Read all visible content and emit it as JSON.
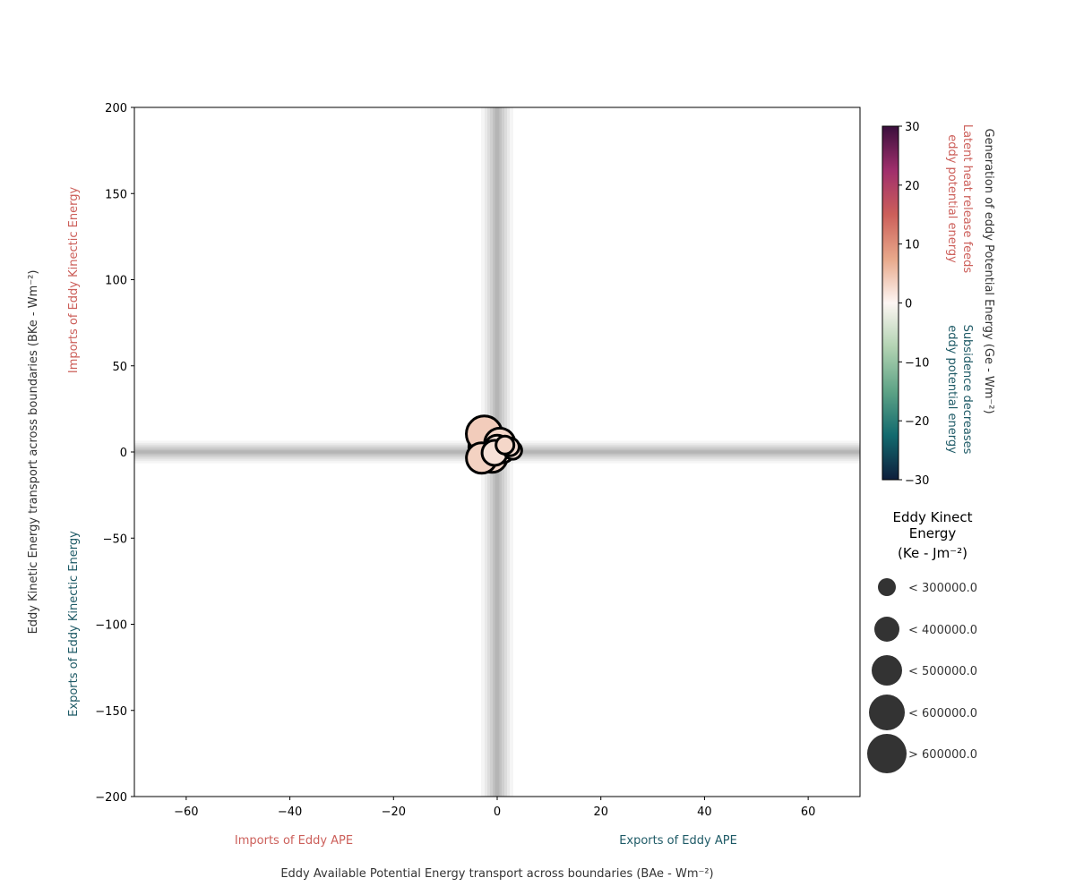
{
  "chart_data": {
    "type": "scatter",
    "xlabel": "Eddy Available Potential Energy transport across boundaries (BAe - Wm⁻²)",
    "ylabel": "Eddy Kinetic Energy transport across boundaries (BKe - Wm⁻²)",
    "xlim": [
      -70,
      70
    ],
    "ylim": [
      -200,
      200
    ],
    "xticks": [
      -60,
      -40,
      -20,
      0,
      20,
      40,
      60
    ],
    "yticks": [
      -200,
      -150,
      -100,
      -50,
      0,
      50,
      100,
      150,
      200
    ],
    "xtick_labels": [
      "−60",
      "−40",
      "−20",
      "0",
      "20",
      "40",
      "60"
    ],
    "ytick_labels": [
      "−200",
      "−150",
      "−100",
      "−50",
      "0",
      "50",
      "100",
      "150",
      "200"
    ],
    "grid": false,
    "quadrant_labels": {
      "x_negative": "Imports of Eddy APE",
      "x_positive": "Exports of Eddy APE",
      "y_positive": "Imports of Eddy Kinectic Energy",
      "y_negative": "Exports of Eddy Kinectic Energy"
    },
    "colors": {
      "imports": "#cc5f5a",
      "exports": "#1e5a66",
      "reference_band": "#808080",
      "marker_edge": "#000000"
    },
    "colorbar": {
      "title": "Generation of eddy Potential Energy (Ge - Wm⁻²)",
      "positive_label": "Latent heat release feeds eddy potential energy",
      "negative_label": "Subsidence decreases eddy potential energy",
      "range": [
        -30,
        30
      ],
      "ticks": [
        30,
        20,
        10,
        0,
        -10,
        -20,
        -30
      ],
      "tick_labels": [
        "30",
        "20",
        "10",
        "0",
        "−10",
        "−20",
        "−30"
      ],
      "colormap": "curl",
      "stops": [
        "#0e1e3c",
        "#126a6e",
        "#5ea386",
        "#b2d3b2",
        "#fdf6f3",
        "#e8a88a",
        "#cc5f5a",
        "#a02f6c",
        "#3a0f3c"
      ]
    },
    "size_legend": {
      "title": "Eddy Kinect Energy (Ke - Jm⁻²)",
      "title_lines": [
        "Eddy Kinect",
        "Energy",
        "(Ke - Jm⁻²)"
      ],
      "entries": [
        {
          "label": "< 300000.0",
          "tier": 1
        },
        {
          "label": "< 400000.0",
          "tier": 2
        },
        {
          "label": "< 500000.0",
          "tier": 3
        },
        {
          "label": "< 600000.0",
          "tier": 4
        },
        {
          "label": "> 600000.0",
          "tier": 5
        }
      ],
      "marker_color": "#333333"
    },
    "points": [
      {
        "x": 3.0,
        "y": 1.0,
        "ge": 2.0,
        "ke_tier": 1
      },
      {
        "x": 2.5,
        "y": 3.0,
        "ge": 2.5,
        "ke_tier": 1
      },
      {
        "x": 1.5,
        "y": 4.0,
        "ge": 3.0,
        "ke_tier": 1
      },
      {
        "x": 1.0,
        "y": 1.0,
        "ge": 2.0,
        "ke_tier": 2
      },
      {
        "x": 0.0,
        "y": 2.5,
        "ge": 2.0,
        "ke_tier": 2
      },
      {
        "x": -0.5,
        "y": -0.5,
        "ge": 2.0,
        "ke_tier": 2
      },
      {
        "x": 0.5,
        "y": 5.0,
        "ge": 3.0,
        "ke_tier": 3
      },
      {
        "x": -1.0,
        "y": -3.0,
        "ge": 3.0,
        "ke_tier": 3
      },
      {
        "x": -3.0,
        "y": -3.5,
        "ge": 3.5,
        "ke_tier": 3
      },
      {
        "x": -2.0,
        "y": 3.0,
        "ge": 4.0,
        "ke_tier": 4
      },
      {
        "x": -2.5,
        "y": 10.5,
        "ge": 4.0,
        "ke_tier": 4
      }
    ]
  }
}
